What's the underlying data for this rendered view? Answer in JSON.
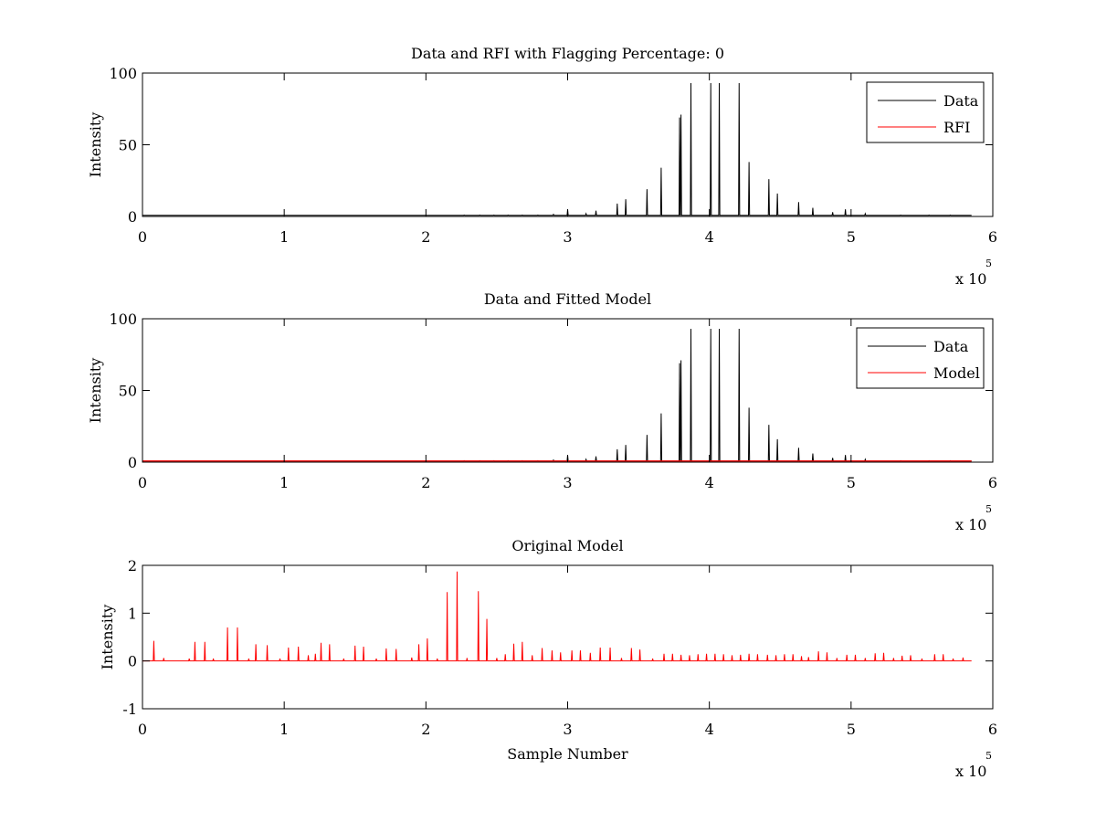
{
  "chart_data": [
    {
      "type": "line",
      "title": "Data and RFI with Flagging Percentage: 0",
      "xlabel": "",
      "ylabel": "Intensity",
      "xlim": [
        0,
        6
      ],
      "ylim": [
        0,
        100
      ],
      "x_multiplier": "x 10",
      "x_multiplier_exp": "5",
      "xticks": [
        "0",
        "1",
        "2",
        "3",
        "4",
        "5",
        "6"
      ],
      "yticks": [
        "0",
        "50",
        "100"
      ],
      "legend_position": "top-right",
      "series": [
        {
          "name": "Data",
          "color": "#000000",
          "baseline": 0.8,
          "spikes": [
            [
              2.27,
              1
            ],
            [
              2.38,
              1
            ],
            [
              2.48,
              1
            ],
            [
              2.58,
              1
            ],
            [
              2.68,
              1
            ],
            [
              2.79,
              1
            ],
            [
              2.9,
              1.5
            ],
            [
              3.0,
              5
            ],
            [
              3.13,
              2
            ],
            [
              3.2,
              4
            ],
            [
              3.35,
              9
            ],
            [
              3.41,
              12
            ],
            [
              3.56,
              19
            ],
            [
              3.66,
              34
            ],
            [
              3.79,
              69
            ],
            [
              3.8,
              71
            ],
            [
              3.87,
              93
            ],
            [
              4.01,
              93
            ],
            [
              4.07,
              93
            ],
            [
              4.21,
              93
            ],
            [
              4.28,
              38
            ],
            [
              4.42,
              26
            ],
            [
              4.48,
              16
            ],
            [
              4.63,
              10
            ],
            [
              4.73,
              6
            ],
            [
              4.87,
              3
            ],
            [
              4.96,
              5
            ],
            [
              5.1,
              2
            ],
            [
              5.35,
              1
            ],
            [
              5.55,
              1
            ],
            [
              5.7,
              1
            ]
          ]
        },
        {
          "name": "RFI",
          "color": "#ff0000",
          "baseline": 0,
          "spikes": []
        }
      ]
    },
    {
      "type": "line",
      "title": "Data and Fitted Model",
      "xlabel": "",
      "ylabel": "Intensity",
      "xlim": [
        0,
        6
      ],
      "ylim": [
        0,
        100
      ],
      "x_multiplier": "x 10",
      "x_multiplier_exp": "5",
      "xticks": [
        "0",
        "1",
        "2",
        "3",
        "4",
        "5",
        "6"
      ],
      "yticks": [
        "0",
        "50",
        "100"
      ],
      "legend_position": "top-right",
      "series": [
        {
          "name": "Data",
          "color": "#000000",
          "baseline": 0.8,
          "spikes": [
            [
              2.27,
              1
            ],
            [
              2.38,
              1
            ],
            [
              2.48,
              1
            ],
            [
              2.58,
              1
            ],
            [
              2.68,
              1
            ],
            [
              2.79,
              1
            ],
            [
              2.9,
              1.5
            ],
            [
              3.0,
              5
            ],
            [
              3.13,
              2
            ],
            [
              3.2,
              4
            ],
            [
              3.35,
              9
            ],
            [
              3.41,
              12
            ],
            [
              3.56,
              19
            ],
            [
              3.66,
              34
            ],
            [
              3.79,
              69
            ],
            [
              3.8,
              71
            ],
            [
              3.87,
              93
            ],
            [
              4.01,
              93
            ],
            [
              4.07,
              93
            ],
            [
              4.21,
              93
            ],
            [
              4.28,
              38
            ],
            [
              4.42,
              26
            ],
            [
              4.48,
              16
            ],
            [
              4.63,
              10
            ],
            [
              4.73,
              6
            ],
            [
              4.87,
              3
            ],
            [
              4.96,
              5
            ],
            [
              5.1,
              2
            ],
            [
              5.35,
              1
            ],
            [
              5.55,
              1
            ],
            [
              5.7,
              1
            ]
          ]
        },
        {
          "name": "Model",
          "color": "#ff0000",
          "baseline": 0.8,
          "spikes": []
        }
      ]
    },
    {
      "type": "line",
      "title": "Original Model",
      "xlabel": "Sample Number",
      "ylabel": "Intensity",
      "xlim": [
        0,
        6
      ],
      "ylim": [
        -1,
        2
      ],
      "x_multiplier": "x 10",
      "x_multiplier_exp": "5",
      "xticks": [
        "0",
        "1",
        "2",
        "3",
        "4",
        "5",
        "6"
      ],
      "yticks": [
        "-1",
        "0",
        "1",
        "2"
      ],
      "legend_position": "none",
      "series": [
        {
          "name": "",
          "color": "#ff0000",
          "baseline": 0,
          "spikes": [
            [
              0.08,
              0.42
            ],
            [
              0.15,
              0.06
            ],
            [
              0.33,
              0.05
            ],
            [
              0.37,
              0.4
            ],
            [
              0.44,
              0.4
            ],
            [
              0.5,
              0.05
            ],
            [
              0.6,
              0.7
            ],
            [
              0.67,
              0.7
            ],
            [
              0.75,
              0.05
            ],
            [
              0.8,
              0.35
            ],
            [
              0.88,
              0.33
            ],
            [
              0.97,
              0.05
            ],
            [
              1.03,
              0.28
            ],
            [
              1.1,
              0.3
            ],
            [
              1.17,
              0.12
            ],
            [
              1.22,
              0.15
            ],
            [
              1.26,
              0.38
            ],
            [
              1.32,
              0.35
            ],
            [
              1.42,
              0.05
            ],
            [
              1.5,
              0.32
            ],
            [
              1.56,
              0.3
            ],
            [
              1.65,
              0.05
            ],
            [
              1.72,
              0.26
            ],
            [
              1.79,
              0.25
            ],
            [
              1.9,
              0.07
            ],
            [
              1.95,
              0.35
            ],
            [
              2.01,
              0.47
            ],
            [
              2.08,
              0.05
            ],
            [
              2.15,
              1.44
            ],
            [
              2.22,
              1.87
            ],
            [
              2.29,
              0.06
            ],
            [
              2.37,
              1.46
            ],
            [
              2.43,
              0.88
            ],
            [
              2.5,
              0.06
            ],
            [
              2.56,
              0.14
            ],
            [
              2.62,
              0.36
            ],
            [
              2.68,
              0.4
            ],
            [
              2.75,
              0.12
            ],
            [
              2.82,
              0.27
            ],
            [
              2.89,
              0.22
            ],
            [
              2.95,
              0.18
            ],
            [
              3.03,
              0.22
            ],
            [
              3.09,
              0.22
            ],
            [
              3.16,
              0.17
            ],
            [
              3.23,
              0.28
            ],
            [
              3.3,
              0.28
            ],
            [
              3.38,
              0.06
            ],
            [
              3.45,
              0.27
            ],
            [
              3.51,
              0.24
            ],
            [
              3.6,
              0.05
            ],
            [
              3.68,
              0.15
            ],
            [
              3.74,
              0.15
            ],
            [
              3.8,
              0.13
            ],
            [
              3.86,
              0.12
            ],
            [
              3.92,
              0.14
            ],
            [
              3.98,
              0.15
            ],
            [
              4.04,
              0.15
            ],
            [
              4.1,
              0.14
            ],
            [
              4.16,
              0.12
            ],
            [
              4.22,
              0.13
            ],
            [
              4.28,
              0.15
            ],
            [
              4.34,
              0.14
            ],
            [
              4.41,
              0.13
            ],
            [
              4.47,
              0.12
            ],
            [
              4.53,
              0.14
            ],
            [
              4.59,
              0.14
            ],
            [
              4.65,
              0.1
            ],
            [
              4.7,
              0.08
            ],
            [
              4.77,
              0.2
            ],
            [
              4.83,
              0.18
            ],
            [
              4.9,
              0.06
            ],
            [
              4.97,
              0.13
            ],
            [
              5.03,
              0.13
            ],
            [
              5.1,
              0.06
            ],
            [
              5.17,
              0.16
            ],
            [
              5.23,
              0.17
            ],
            [
              5.3,
              0.06
            ],
            [
              5.36,
              0.11
            ],
            [
              5.42,
              0.12
            ],
            [
              5.5,
              0.05
            ],
            [
              5.59,
              0.14
            ],
            [
              5.65,
              0.14
            ],
            [
              5.72,
              0.05
            ],
            [
              5.79,
              0.07
            ]
          ]
        }
      ]
    }
  ]
}
